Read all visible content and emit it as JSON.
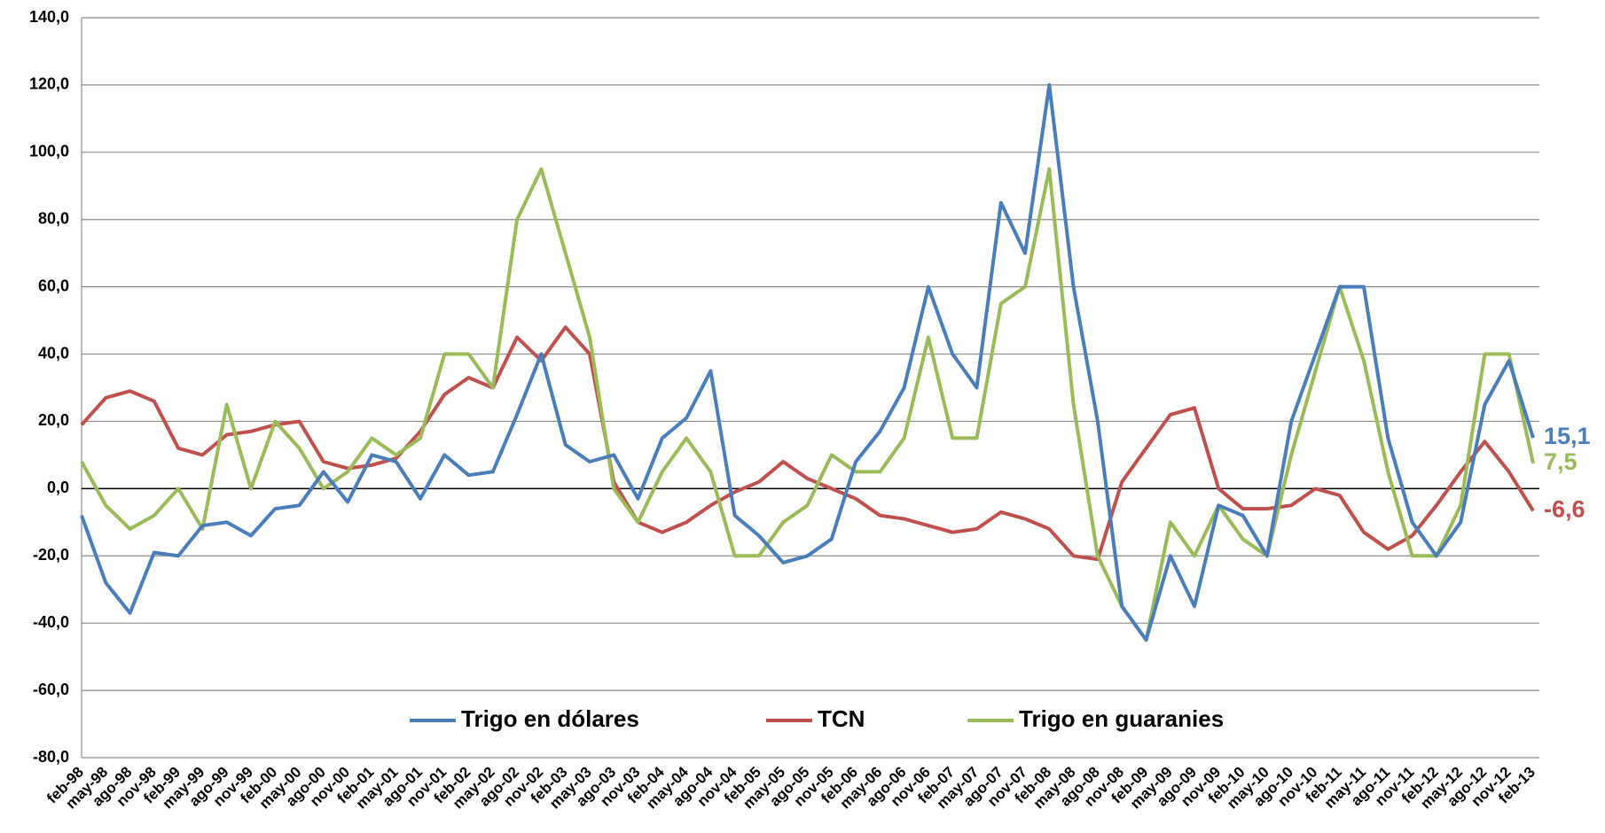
{
  "chart_data": {
    "type": "line",
    "categories": [
      "feb-98",
      "may-98",
      "ago-98",
      "nov-98",
      "feb-99",
      "may-99",
      "ago-99",
      "nov-99",
      "feb-00",
      "may-00",
      "ago-00",
      "nov-00",
      "feb-01",
      "may-01",
      "ago-01",
      "nov-01",
      "feb-02",
      "may-02",
      "ago-02",
      "nov-02",
      "feb-03",
      "may-03",
      "ago-03",
      "nov-03",
      "feb-04",
      "may-04",
      "ago-04",
      "nov-04",
      "feb-05",
      "may-05",
      "ago-05",
      "nov-05",
      "feb-06",
      "may-06",
      "ago-06",
      "nov-06",
      "feb-07",
      "may-07",
      "ago-07",
      "nov-07",
      "feb-08",
      "may-08",
      "ago-08",
      "nov-08",
      "feb-09",
      "may-09",
      "ago-09",
      "nov-09",
      "feb-10",
      "may-10",
      "ago-10",
      "nov-10",
      "feb-11",
      "may-11",
      "ago-11",
      "nov-11",
      "feb-12",
      "may-12",
      "ago-12",
      "nov-12",
      "feb-13"
    ],
    "series": [
      {
        "name": "Trigo en dólares",
        "color": "#4a7ebb",
        "end_label": "15,1",
        "values": [
          -8,
          -28,
          -37,
          -19,
          -20,
          -11,
          -10,
          -14,
          -6,
          -5,
          5,
          -4,
          10,
          8,
          -3,
          10,
          4,
          5,
          22,
          40,
          13,
          8,
          10,
          -3,
          15,
          21,
          35,
          -8,
          -14,
          -22,
          -20,
          -15,
          8,
          17,
          30,
          60,
          40,
          30,
          85,
          70,
          120,
          60,
          20,
          -35,
          -45,
          -20,
          -35,
          -5,
          -8,
          -20,
          20,
          40,
          60,
          60,
          15,
          -10,
          -20,
          -10,
          25,
          38,
          15.1
        ]
      },
      {
        "name": "TCN",
        "color": "#c0504d",
        "end_label": "-6,6",
        "values": [
          19,
          27,
          29,
          26,
          12,
          10,
          16,
          17,
          19,
          20,
          8,
          6,
          7,
          9,
          17,
          28,
          33,
          30,
          45,
          38,
          48,
          40,
          2,
          -10,
          -13,
          -10,
          -5,
          -1,
          2,
          8,
          3,
          0,
          -3,
          -8,
          -9,
          -11,
          -13,
          -12,
          -7,
          -9,
          -12,
          -20,
          -21,
          2,
          12,
          22,
          24,
          0,
          -6,
          -6,
          -5,
          0,
          -2,
          -13,
          -18,
          -14,
          -5,
          5,
          14,
          5,
          -6.6
        ]
      },
      {
        "name": "Trigo en guaranies",
        "color": "#9bbb59",
        "end_label": "7,5",
        "values": [
          8,
          -5,
          -12,
          -8,
          0,
          -12,
          25,
          0,
          20,
          12,
          0,
          5,
          15,
          10,
          15,
          40,
          40,
          30,
          80,
          95,
          70,
          45,
          0,
          -10,
          5,
          15,
          5,
          -20,
          -20,
          -10,
          -5,
          10,
          5,
          5,
          15,
          45,
          15,
          15,
          55,
          60,
          95,
          25,
          -20,
          -35,
          -45,
          -10,
          -20,
          -5,
          -15,
          -20,
          10,
          35,
          60,
          38,
          5,
          -20,
          -20,
          -5,
          40,
          40,
          7.5
        ]
      }
    ],
    "ylim": [
      -80,
      140
    ],
    "yticks": [
      {
        "value": -80,
        "label": "-80,0"
      },
      {
        "value": -60,
        "label": "-60,0"
      },
      {
        "value": -40,
        "label": "-40,0"
      },
      {
        "value": -20,
        "label": "-20,0"
      },
      {
        "value": 0,
        "label": "0,0"
      },
      {
        "value": 20,
        "label": "20,0"
      },
      {
        "value": 40,
        "label": "40,0"
      },
      {
        "value": 60,
        "label": "60,0"
      },
      {
        "value": 80,
        "label": "80,0"
      },
      {
        "value": 100,
        "label": "100,0"
      },
      {
        "value": 120,
        "label": "120,0"
      },
      {
        "value": 140,
        "label": "140,0"
      }
    ],
    "grid": true,
    "legend": "bottom"
  }
}
